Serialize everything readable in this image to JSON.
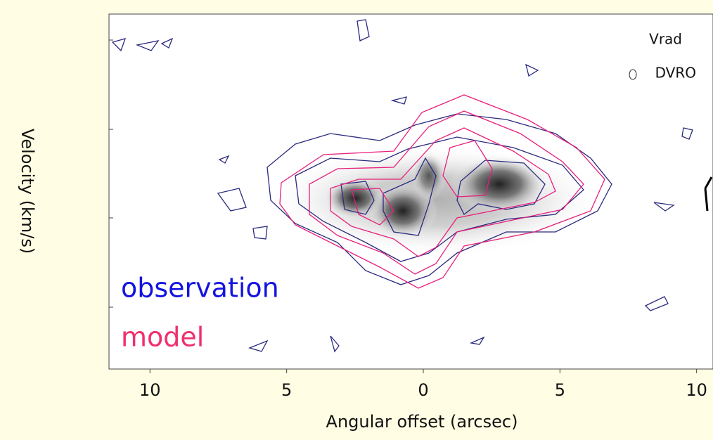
{
  "chart_data": {
    "type": "contour",
    "xlabel": "Angular offset (arcsec)",
    "ylabel": "Velocity (km/s)",
    "xlim": [
      -11.5,
      10.6
    ],
    "xticks": [
      {
        "value": -10,
        "label": "10"
      },
      {
        "value": -5,
        "label": "5"
      },
      0,
      5,
      10
    ],
    "annotations": [
      "Vrad",
      "DVRO"
    ],
    "series": [
      {
        "name": "observation",
        "color": "#1414e0"
      },
      {
        "name": "model",
        "color": "#f0306e"
      }
    ]
  }
}
